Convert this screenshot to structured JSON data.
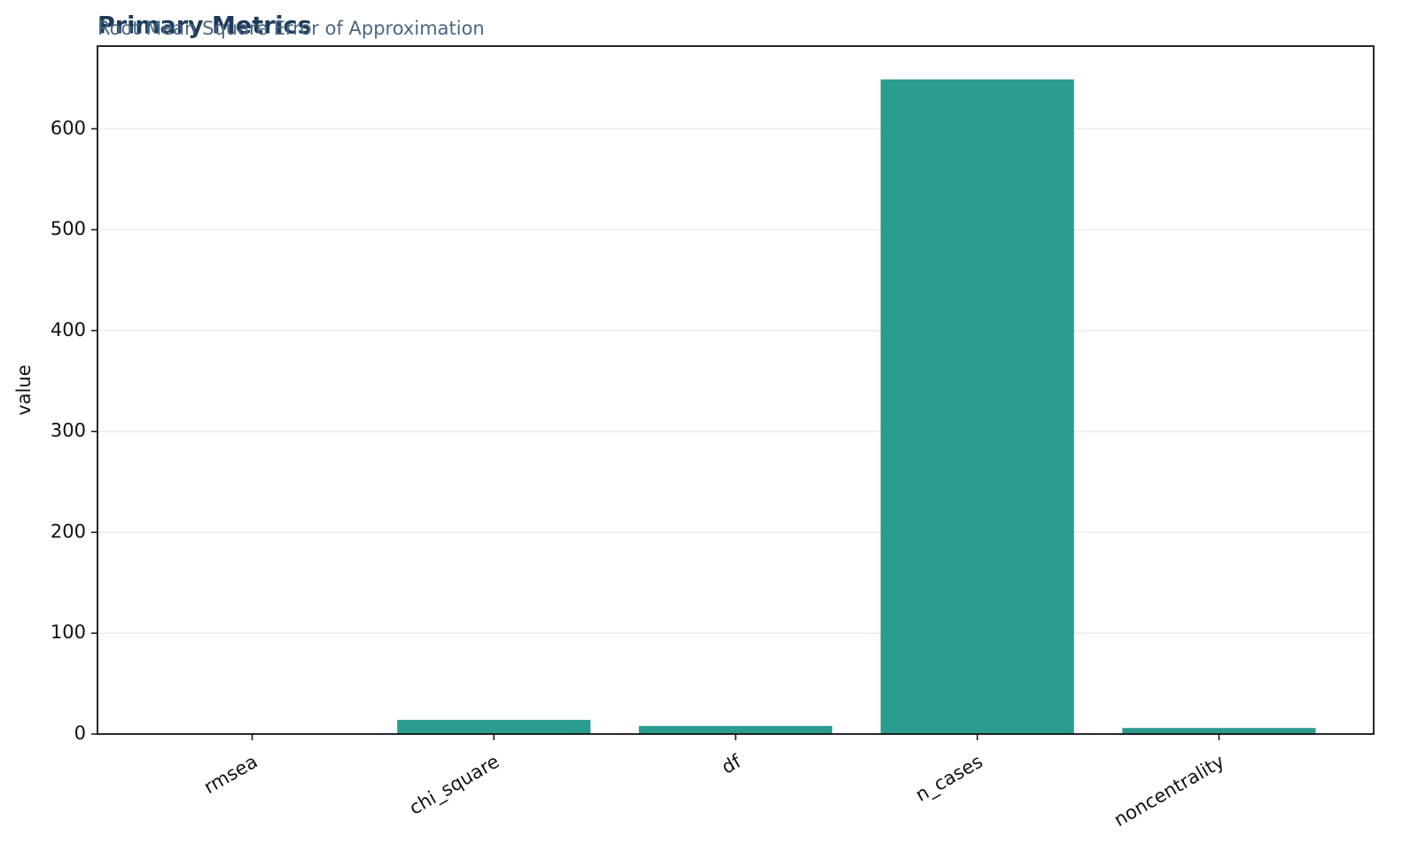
{
  "chart_data": {
    "type": "bar",
    "title": "Primary Metrics",
    "subtitle": "Root Mean Square Error of Approximation",
    "y_label": "value",
    "categories": [
      "rmsea",
      "chi_square",
      "df",
      "n_cases",
      "noncentrality"
    ],
    "values": [
      0.03,
      14,
      8,
      649,
      6
    ],
    "color": "#2a9d8f",
    "ylim": [
      0,
      682
    ],
    "yticks": [
      0,
      100,
      200,
      300,
      400,
      500,
      600
    ],
    "grid": true
  }
}
